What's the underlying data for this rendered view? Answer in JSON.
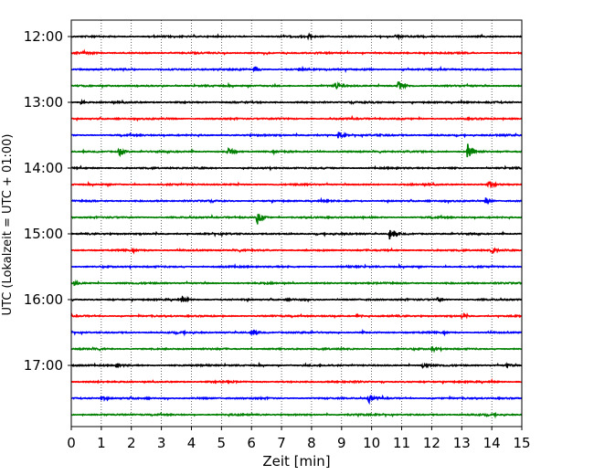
{
  "chart_data": {
    "type": "line",
    "title": "",
    "xlabel": "Zeit  [min]",
    "ylabel": "UTC (Lokalzeit = UTC + 01:00)",
    "xlim": [
      0,
      15
    ],
    "x_ticks": [
      "0",
      "1",
      "2",
      "3",
      "4",
      "5",
      "6",
      "7",
      "8",
      "9",
      "10",
      "11",
      "12",
      "13",
      "14",
      "15"
    ],
    "y_ticks": [
      {
        "label": "12:00",
        "trace": 0
      },
      {
        "label": "13:00",
        "trace": 4
      },
      {
        "label": "14:00",
        "trace": 8
      },
      {
        "label": "15:00",
        "trace": 12
      },
      {
        "label": "16:00",
        "trace": 16
      },
      {
        "label": "17:00",
        "trace": 20
      }
    ],
    "grid": "vertical dotted lines at each minute",
    "trace_interval_minutes": 15,
    "color_cycle": [
      "#000000",
      "#ff0000",
      "#0000ff",
      "#008000"
    ],
    "series": [
      {
        "start": "12:00",
        "events": [
          {
            "t": 7.9,
            "amp": 0.22
          },
          {
            "t": 10.8,
            "amp": 0.22
          }
        ]
      },
      {
        "start": "12:15",
        "events": [
          {
            "t": 0.4,
            "amp": 0.25
          }
        ]
      },
      {
        "start": "12:30",
        "events": [
          {
            "t": 6.1,
            "amp": 0.32
          },
          {
            "t": 7.6,
            "amp": 0.2
          }
        ]
      },
      {
        "start": "12:45",
        "events": [
          {
            "t": 8.8,
            "amp": 0.45
          },
          {
            "t": 10.9,
            "amp": 0.7
          }
        ]
      },
      {
        "start": "13:00",
        "events": [
          {
            "t": 0.3,
            "amp": 0.28
          }
        ]
      },
      {
        "start": "13:15",
        "events": []
      },
      {
        "start": "13:30",
        "events": [
          {
            "t": 8.9,
            "amp": 0.55
          }
        ]
      },
      {
        "start": "13:45",
        "events": [
          {
            "t": 1.6,
            "amp": 0.55
          },
          {
            "t": 5.2,
            "amp": 0.6
          },
          {
            "t": 13.2,
            "amp": 1.25
          }
        ]
      },
      {
        "start": "14:00",
        "events": []
      },
      {
        "start": "14:15",
        "events": [
          {
            "t": 13.9,
            "amp": 0.35
          }
        ]
      },
      {
        "start": "14:30",
        "events": [
          {
            "t": 13.8,
            "amp": 0.45
          }
        ]
      },
      {
        "start": "14:45",
        "events": [
          {
            "t": 6.2,
            "amp": 0.85
          }
        ]
      },
      {
        "start": "15:00",
        "events": [
          {
            "t": 10.6,
            "amp": 0.95
          }
        ]
      },
      {
        "start": "15:15",
        "events": [
          {
            "t": 14.0,
            "amp": 0.35
          }
        ]
      },
      {
        "start": "15:30",
        "events": []
      },
      {
        "start": "15:45",
        "events": [
          {
            "t": 0.1,
            "amp": 0.22
          }
        ]
      },
      {
        "start": "16:00",
        "events": [
          {
            "t": 3.7,
            "amp": 0.3
          },
          {
            "t": 12.2,
            "amp": 0.25
          }
        ]
      },
      {
        "start": "16:15",
        "events": [
          {
            "t": 9.5,
            "amp": 0.22
          },
          {
            "t": 13.0,
            "amp": 0.22
          }
        ]
      },
      {
        "start": "16:30",
        "events": [
          {
            "t": 6.0,
            "amp": 0.45
          }
        ]
      },
      {
        "start": "16:45",
        "events": [
          {
            "t": 12.0,
            "amp": 0.32
          }
        ]
      },
      {
        "start": "17:00",
        "events": [
          {
            "t": 1.5,
            "amp": 0.25
          },
          {
            "t": 11.7,
            "amp": 0.28
          },
          {
            "t": 14.5,
            "amp": 0.22
          }
        ]
      },
      {
        "start": "17:15",
        "events": []
      },
      {
        "start": "17:30",
        "events": [
          {
            "t": 1.0,
            "amp": 0.22
          },
          {
            "t": 9.9,
            "amp": 0.55
          }
        ]
      },
      {
        "start": "17:45",
        "events": []
      }
    ]
  }
}
